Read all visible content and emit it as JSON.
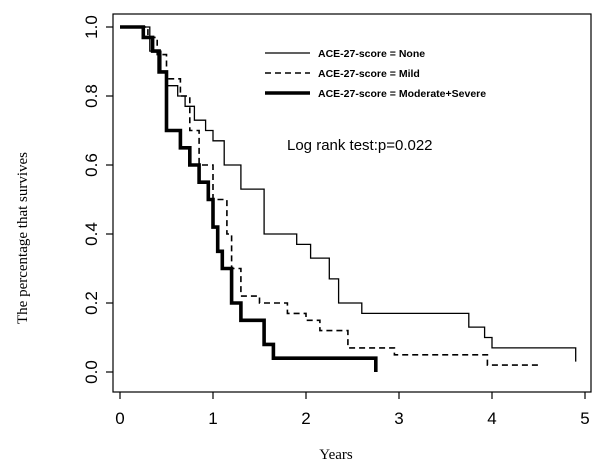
{
  "chart_data": {
    "type": "line",
    "step": true,
    "xlabel": "Years",
    "ylabel": "The percentage that survives",
    "xlim": [
      0,
      5
    ],
    "ylim": [
      0,
      1
    ],
    "xticks": [
      "0",
      "1",
      "2",
      "3",
      "4",
      "5"
    ],
    "yticks": [
      "0.0",
      "0.2",
      "0.4",
      "0.6",
      "0.8",
      "1.0"
    ],
    "grid": false,
    "legend_position": "top-right",
    "annotation": "Log rank test:p=0.022",
    "series": [
      {
        "name": "ACE-27-score = None",
        "line_style": "solid",
        "line_width": "thin",
        "x": [
          0,
          0.32,
          0.44,
          0.5,
          0.62,
          0.7,
          0.8,
          0.92,
          1.0,
          1.12,
          1.3,
          1.55,
          1.9,
          2.05,
          2.25,
          2.35,
          2.6,
          3.1,
          3.75,
          3.92,
          4.0,
          4.9
        ],
        "y": [
          1.0,
          0.93,
          0.87,
          0.83,
          0.8,
          0.77,
          0.73,
          0.7,
          0.67,
          0.6,
          0.53,
          0.4,
          0.37,
          0.33,
          0.27,
          0.2,
          0.17,
          0.17,
          0.13,
          0.1,
          0.07,
          0.03
        ]
      },
      {
        "name": "ACE-27-score = Mild",
        "line_style": "dashed",
        "line_width": "medium",
        "x": [
          0,
          0.3,
          0.4,
          0.5,
          0.65,
          0.75,
          0.85,
          1.0,
          1.15,
          1.2,
          1.3,
          1.5,
          1.8,
          2.0,
          2.15,
          2.45,
          2.95,
          3.3,
          3.95,
          4.5
        ],
        "y": [
          1.0,
          0.97,
          0.92,
          0.85,
          0.8,
          0.7,
          0.6,
          0.5,
          0.4,
          0.3,
          0.22,
          0.2,
          0.17,
          0.15,
          0.12,
          0.07,
          0.05,
          0.05,
          0.02,
          0.02
        ]
      },
      {
        "name": "ACE-27-score = Moderate+Severe",
        "line_style": "solid",
        "line_width": "thick",
        "x": [
          0,
          0.25,
          0.35,
          0.42,
          0.5,
          0.65,
          0.75,
          0.85,
          0.95,
          1.0,
          1.05,
          1.1,
          1.2,
          1.3,
          1.4,
          1.55,
          1.65,
          2.75
        ],
        "y": [
          1.0,
          0.97,
          0.93,
          0.87,
          0.7,
          0.65,
          0.6,
          0.55,
          0.5,
          0.42,
          0.35,
          0.3,
          0.2,
          0.15,
          0.15,
          0.08,
          0.04,
          0.0
        ]
      }
    ]
  }
}
